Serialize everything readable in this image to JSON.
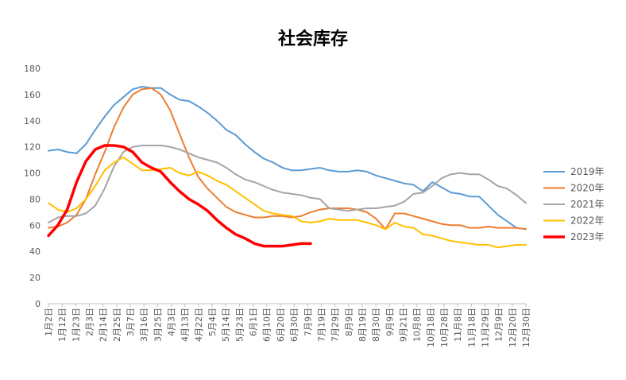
{
  "chart_data": {
    "type": "line",
    "title": "社会库存",
    "xlabel": "",
    "ylabel": "",
    "ylim": [
      0,
      180
    ],
    "yticks": [
      0,
      20,
      40,
      60,
      80,
      100,
      120,
      140,
      160,
      180
    ],
    "xlim": [
      0,
      51
    ],
    "x_tick_labels": [
      "1月2日",
      "1月12日",
      "1月23日",
      "2月3日",
      "2月14日",
      "2月25日",
      "3月7日",
      "3月16日",
      "3月25日",
      "4月3日",
      "4月13日",
      "4月22日",
      "5月4日",
      "5月14日",
      "5月23日",
      "6月1日",
      "6月10日",
      "6月20日",
      "6月30日",
      "7月9日",
      "7月19日",
      "7月29日",
      "8月9日",
      "8月19日",
      "8月30日",
      "9月9日",
      "9月21日",
      "10月8日",
      "10月18日",
      "10月28日",
      "11月8日",
      "11月18日",
      "11月29日",
      "12月9日",
      "12月20日",
      "12月30日"
    ],
    "grid": false,
    "legend_position": "right",
    "series": [
      {
        "name": "2019年",
        "color": "#5B9BD5",
        "x": [
          0,
          1,
          2,
          3,
          4,
          5,
          6,
          7,
          8,
          9,
          10,
          11,
          12,
          13,
          14,
          15,
          16,
          17,
          18,
          19,
          20,
          21,
          22,
          23,
          24,
          25,
          26,
          27,
          28,
          29,
          30,
          31,
          32,
          33,
          34,
          35,
          36,
          37,
          38,
          39,
          40,
          41,
          42,
          43,
          44,
          45,
          46,
          47,
          48,
          49,
          50,
          51
        ],
        "y": [
          117,
          118,
          116,
          115,
          122,
          133,
          143,
          152,
          158,
          164,
          166,
          165,
          165,
          160,
          156,
          155,
          151,
          146,
          140,
          133,
          129,
          122,
          116,
          111,
          108,
          104,
          102,
          102,
          103,
          104,
          102,
          101,
          101,
          102,
          101,
          98,
          96,
          94,
          92,
          91,
          86,
          93,
          89,
          85,
          84,
          82,
          82,
          75,
          68,
          63,
          58,
          57
        ]
      },
      {
        "name": "2020年",
        "color": "#ED7D31",
        "x": [
          0,
          1,
          2,
          3,
          4,
          5,
          6,
          7,
          8,
          9,
          10,
          11,
          12,
          13,
          14,
          15,
          16,
          17,
          18,
          19,
          20,
          21,
          22,
          23,
          24,
          25,
          26,
          27,
          28,
          29,
          30,
          31,
          32,
          33,
          34,
          35,
          36,
          37,
          38,
          39,
          40,
          41,
          42,
          43,
          44,
          45,
          46,
          47,
          48,
          49,
          50,
          51
        ],
        "y": [
          58,
          59,
          62,
          68,
          80,
          99,
          116,
          135,
          150,
          160,
          164,
          165,
          160,
          148,
          130,
          112,
          97,
          88,
          81,
          74,
          70,
          68,
          66,
          66,
          67,
          67,
          66,
          67,
          70,
          72,
          73,
          73,
          73,
          72,
          70,
          65,
          57,
          69,
          69,
          67,
          65,
          63,
          61,
          60,
          60,
          58,
          58,
          59,
          58,
          58,
          58,
          57
        ]
      },
      {
        "name": "2021年",
        "color": "#A5A5A5",
        "x": [
          0,
          1,
          2,
          3,
          4,
          5,
          6,
          7,
          8,
          9,
          10,
          11,
          12,
          13,
          14,
          15,
          16,
          17,
          18,
          19,
          20,
          21,
          22,
          23,
          24,
          25,
          26,
          27,
          28,
          29,
          30,
          31,
          32,
          33,
          34,
          35,
          36,
          37,
          38,
          39,
          40,
          41,
          42,
          43,
          44,
          45,
          46,
          47,
          48,
          49,
          50,
          51
        ],
        "y": [
          62,
          66,
          67,
          67,
          69,
          75,
          88,
          105,
          116,
          120,
          121,
          121,
          121,
          120,
          118,
          115,
          112,
          110,
          108,
          104,
          99,
          95,
          93,
          90,
          87,
          85,
          84,
          83,
          81,
          80,
          73,
          72,
          71,
          72,
          73,
          73,
          74,
          75,
          78,
          84,
          85,
          90,
          96,
          99,
          100,
          99,
          99,
          95,
          90,
          88,
          83,
          77
        ]
      },
      {
        "name": "2022年",
        "color": "#FFC000",
        "x": [
          0,
          1,
          2,
          3,
          4,
          5,
          6,
          7,
          8,
          9,
          10,
          11,
          12,
          13,
          14,
          15,
          16,
          17,
          18,
          19,
          20,
          21,
          22,
          23,
          24,
          25,
          26,
          27,
          28,
          29,
          30,
          31,
          32,
          33,
          34,
          35,
          36,
          37,
          38,
          39,
          40,
          41,
          42,
          43,
          44,
          45,
          46,
          47,
          48,
          49,
          50,
          51
        ],
        "y": [
          77,
          72,
          70,
          73,
          80,
          90,
          102,
          108,
          112,
          107,
          102,
          102,
          103,
          104,
          100,
          98,
          101,
          98,
          94,
          91,
          86,
          81,
          76,
          71,
          69,
          68,
          67,
          63,
          62,
          63,
          65,
          64,
          64,
          64,
          62,
          60,
          57,
          62,
          59,
          58,
          53,
          52,
          50,
          48,
          47,
          46,
          45,
          45,
          43,
          44,
          45,
          45
        ]
      },
      {
        "name": "2023年",
        "color": "#FF0000",
        "x": [
          0,
          1,
          2,
          3,
          4,
          5,
          6,
          7,
          8,
          9,
          10,
          11,
          12,
          13,
          14,
          15,
          16,
          17,
          18,
          19,
          20,
          21,
          22,
          23,
          24,
          25,
          26,
          27,
          28
        ],
        "y": [
          52,
          60,
          72,
          93,
          109,
          118,
          121,
          121,
          120,
          116,
          108,
          104,
          101,
          93,
          86,
          80,
          76,
          71,
          64,
          58,
          53,
          50,
          46,
          44,
          44,
          44,
          45,
          46,
          46
        ]
      }
    ]
  }
}
